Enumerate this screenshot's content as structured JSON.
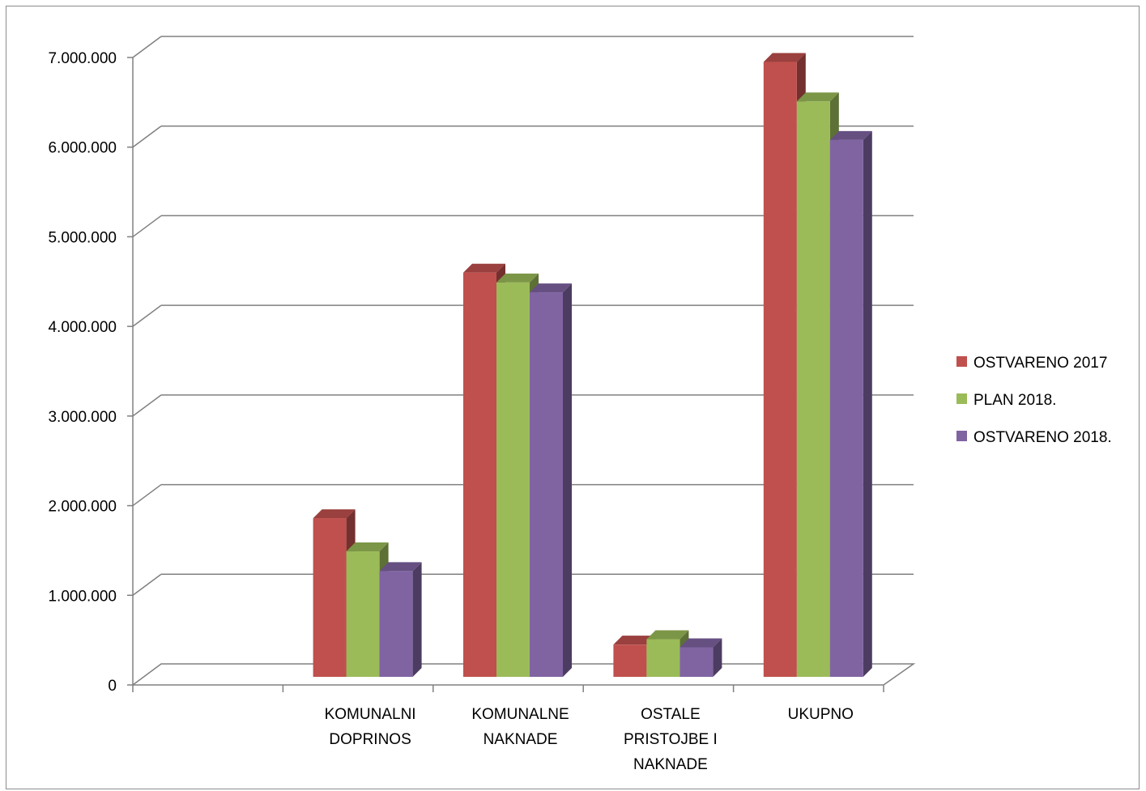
{
  "chart_data": {
    "type": "bar",
    "title": "",
    "xlabel": "",
    "ylabel": "",
    "ylim": [
      0,
      7000000
    ],
    "y_ticks": [
      0,
      1000000,
      2000000,
      3000000,
      4000000,
      5000000,
      6000000,
      7000000
    ],
    "y_tick_labels": [
      "0",
      "1.000.000",
      "2.000.000",
      "3.000.000",
      "4.000.000",
      "5.000.000",
      "6.000.000",
      "7.000.000"
    ],
    "categories": [
      [
        "KOMUNALNI",
        "DOPRINOS"
      ],
      [
        "KOMUNALNE",
        "NAKNADE"
      ],
      [
        "OSTALE",
        "PRISTOJBE I",
        "NAKNADE"
      ],
      [
        "UKUPNO"
      ]
    ],
    "empty_leading_category": true,
    "series": [
      {
        "name": "OSTVARENO 2017",
        "color": "#c0504d",
        "values": [
          1860000,
          4600000,
          450000,
          6950000
        ]
      },
      {
        "name": "PLAN 2018.",
        "color": "#9bbb59",
        "values": [
          1490000,
          4490000,
          510000,
          6510000
        ]
      },
      {
        "name": "OSTVARENO 2018.",
        "color": "#8064a2",
        "values": [
          1270000,
          4380000,
          420000,
          6080000
        ]
      }
    ],
    "grid": true,
    "legend_position": "right",
    "style": "3d-clustered-column"
  }
}
